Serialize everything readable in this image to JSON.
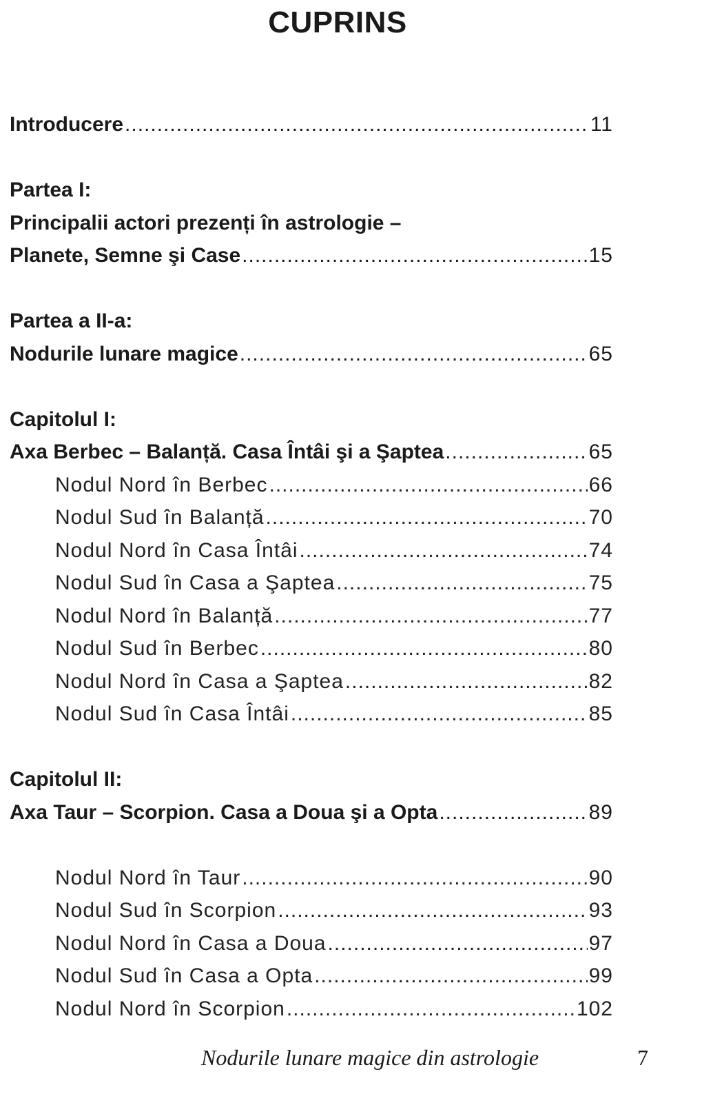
{
  "title": "CUPRINS",
  "entries": [
    {
      "text": "Introducere",
      "page": "11",
      "style": "bold"
    },
    {
      "gap": true
    },
    {
      "text": "Partea I:",
      "style": "bold"
    },
    {
      "text": "Principalii actori prezenți în astrologie –",
      "style": "bold"
    },
    {
      "text": "Planete, Semne şi Case",
      "page": "15",
      "style": "bold"
    },
    {
      "gap": true
    },
    {
      "text": "Partea a II-a:",
      "style": "bold"
    },
    {
      "text": "Nodurile lunare magice",
      "page": "65",
      "style": "bold"
    },
    {
      "gap": true
    },
    {
      "text": "Capitolul I:",
      "style": "bold"
    },
    {
      "text": "Axa Berbec – Balanță. Casa Întâi şi a Şaptea",
      "page": "65",
      "style": "bold"
    },
    {
      "text": "Nodul Nord în Berbec",
      "page": "66",
      "style": "light"
    },
    {
      "text": "Nodul Sud în Balanță",
      "page": "70",
      "style": "light"
    },
    {
      "text": "Nodul Nord în Casa Întâi",
      "page": "74",
      "style": "light"
    },
    {
      "text": "Nodul Sud în Casa a Şaptea",
      "page": "75",
      "style": "light"
    },
    {
      "text": "Nodul Nord în Balanță",
      "page": "77",
      "style": "light"
    },
    {
      "text": "Nodul Sud în Berbec",
      "page": "80",
      "style": "light"
    },
    {
      "text": "Nodul Nord în Casa a Şaptea",
      "page": "82",
      "style": "light"
    },
    {
      "text": "Nodul Sud în Casa Întâi",
      "page": "85",
      "style": "light"
    },
    {
      "gap": true
    },
    {
      "text": "Capitolul II:",
      "style": "bold"
    },
    {
      "text": "Axa Taur – Scorpion. Casa a Doua şi a Opta",
      "page": "89",
      "style": "bold"
    },
    {
      "gap": true
    },
    {
      "text": "Nodul Nord în Taur",
      "page": "90",
      "style": "light"
    },
    {
      "text": "Nodul Sud în Scorpion",
      "page": "93",
      "style": "light"
    },
    {
      "text": "Nodul Nord în Casa a Doua",
      "page": "97",
      "style": "light"
    },
    {
      "text": "Nodul Sud în Casa a Opta",
      "page": "99",
      "style": "light"
    },
    {
      "text": "Nodul Nord în Scorpion",
      "page": "102",
      "style": "light"
    }
  ],
  "footer": {
    "book_title": "Nodurile lunare magice din astrologie",
    "page_number": "7"
  }
}
